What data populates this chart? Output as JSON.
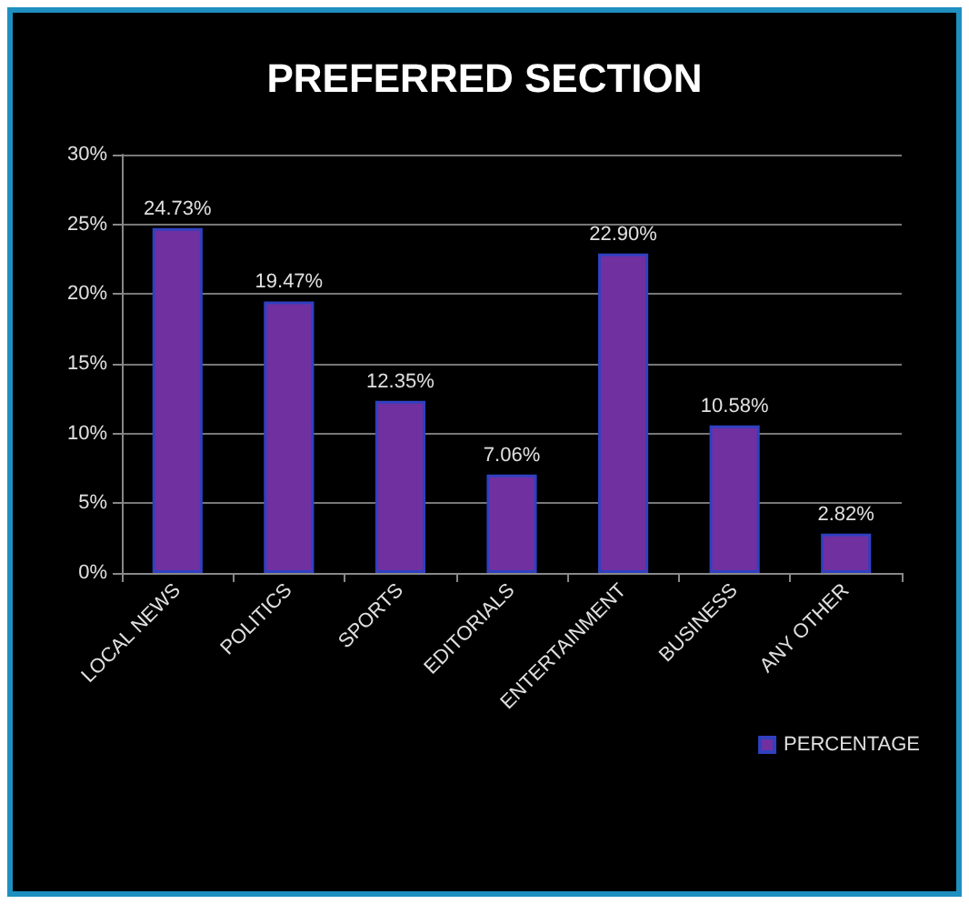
{
  "chart_data": {
    "type": "bar",
    "title": "PREFERRED SECTION",
    "categories": [
      "LOCAL NEWS",
      "POLITICS",
      "SPORTS",
      "EDITORIALS",
      "ENTERTAINMENT",
      "BUSINESS",
      "ANY OTHER"
    ],
    "series": [
      {
        "name": "PERCENTAGE",
        "color": "#7030a0",
        "values": [
          24.73,
          19.47,
          12.35,
          7.06,
          22.9,
          10.58,
          2.82
        ],
        "value_labels": [
          "24.73%",
          "19.47%",
          "12.35%",
          "7.06%",
          "22.90%",
          "10.58%",
          "2.82%"
        ]
      }
    ],
    "ylim": [
      0,
      30
    ],
    "yticks": [
      {
        "value": 0,
        "label": "0%"
      },
      {
        "value": 5,
        "label": "5%"
      },
      {
        "value": 10,
        "label": "10%"
      },
      {
        "value": 15,
        "label": "15%"
      },
      {
        "value": 20,
        "label": "20%"
      },
      {
        "value": 25,
        "label": "25%"
      },
      {
        "value": 30,
        "label": "30%"
      }
    ],
    "grid": "y",
    "legend": "bottom right"
  }
}
